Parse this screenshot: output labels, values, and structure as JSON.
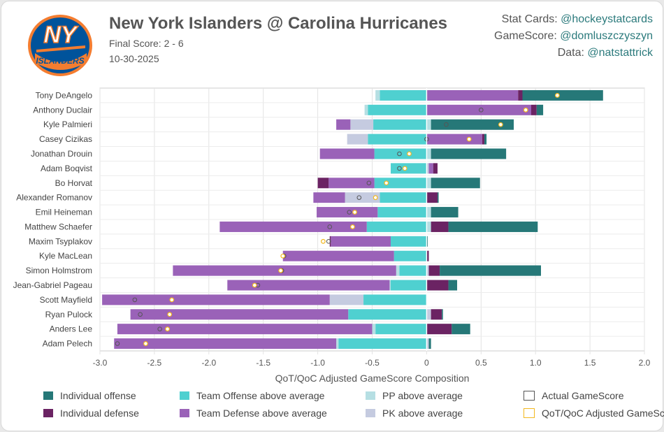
{
  "header": {
    "title": "New York Islanders @ Carolina Hurricanes",
    "final_score": "Final Score: 2 - 6",
    "date": "10-30-2025",
    "logo_text": "NY",
    "logo_word": "ISLANDERS"
  },
  "credits": [
    {
      "label": "Stat Cards: ",
      "handle": "@hockeystatcards"
    },
    {
      "label": "GameScore: ",
      "handle": "@domluszczyszyn"
    },
    {
      "label": "Data: ",
      "handle": "@natstattrick"
    }
  ],
  "colors": {
    "ind_off": "#267878",
    "ind_def": "#6b2363",
    "team_off": "#4fd0d0",
    "team_def": "#9a62b8",
    "pp": "#b6dfe3",
    "pk": "#c5cbe0",
    "actual_marker": "#555555",
    "adjusted_marker": "#f2b81f"
  },
  "legend": [
    {
      "key": "ind_off",
      "label": "Individual offense"
    },
    {
      "key": "team_off",
      "label": "Team Offense above average"
    },
    {
      "key": "pp",
      "label": "PP above average"
    },
    {
      "key": "actual",
      "label": "Actual GameScore"
    },
    {
      "key": "ind_def",
      "label": "Individual defense"
    },
    {
      "key": "team_def",
      "label": "Team Defense above average"
    },
    {
      "key": "pk",
      "label": "PK above average"
    },
    {
      "key": "adjusted",
      "label": "QoT/QoC Adjusted GameScore"
    }
  ],
  "chart_data": {
    "type": "bar",
    "orientation": "horizontal-stacked-diverging",
    "xlabel": "QoT/QoC Adjusted GameScore Composition",
    "xlim": [
      -3.0,
      2.0
    ],
    "xticks": [
      -3.0,
      -2.5,
      -2.0,
      -1.5,
      -1.0,
      -0.5,
      0,
      0.5,
      1.0,
      1.5,
      2.0
    ],
    "xtick_labels": [
      "-3.0",
      "-2.5",
      "-2.0",
      "-1.5",
      "-1.0",
      "-0.5",
      "0",
      "0.5",
      "1.0",
      "1.5",
      "2.0"
    ],
    "grid": true,
    "legend_position": "bottom",
    "players": [
      {
        "name": "Tony DeAngelo",
        "team_off": -0.43,
        "pp": -0.04,
        "team_def": 0.84,
        "ind_def": 0.04,
        "ind_off": 0.74,
        "pk": 0,
        "actual": 1.2,
        "adjusted": 1.2
      },
      {
        "name": "Anthony Duclair",
        "team_off": -0.54,
        "pp": -0.03,
        "team_def": 0.96,
        "ind_def": 0.05,
        "ind_off": 0.06,
        "pk": 0,
        "actual": 0.5,
        "adjusted": 0.91
      },
      {
        "name": "Kyle Palmieri",
        "team_off": -0.49,
        "pk": -0.21,
        "team_def": -0.13,
        "ind_off": 0.76,
        "pp": 0.04,
        "actual": 0.18,
        "adjusted": 0.68
      },
      {
        "name": "Casey Cizikas",
        "team_off": -0.54,
        "pk": -0.19,
        "team_def": 0.51,
        "ind_def": 0.02,
        "ind_off": 0.02,
        "pp": 0,
        "actual": 0.0,
        "adjusted": 0.39
      },
      {
        "name": "Jonathan Drouin",
        "team_off": -0.48,
        "team_def": -0.5,
        "ind_off": 0.69,
        "pp": 0.04,
        "pk": 0,
        "actual": -0.25,
        "adjusted": -0.16
      },
      {
        "name": "Adam Boqvist",
        "team_off": -0.33,
        "team_def": 0.04,
        "ind_def": 0.04,
        "pk": 0.02,
        "pp": 0,
        "actual": -0.25,
        "adjusted": -0.2
      },
      {
        "name": "Bo Horvat",
        "team_off": -0.48,
        "ind_def": -0.1,
        "team_def": -0.42,
        "ind_off": 0.45,
        "pp": 0.04,
        "actual": -0.53,
        "adjusted": -0.37
      },
      {
        "name": "Alexander Romanov",
        "team_off": -0.43,
        "pk": -0.32,
        "team_def": -0.29,
        "ind_def": 0.1,
        "ind_off": 0.01,
        "pp": 0,
        "actual": -0.62,
        "adjusted": -0.47
      },
      {
        "name": "Emil Heineman",
        "team_off": -0.45,
        "team_def": -0.56,
        "ind_off": 0.25,
        "pp": 0.04,
        "pk": 0,
        "actual": -0.71,
        "adjusted": -0.66
      },
      {
        "name": "Matthew Schaefer",
        "team_off": -0.55,
        "team_def": -1.35,
        "ind_def": 0.16,
        "ind_off": 0.82,
        "pp": 0.04,
        "actual": -0.89,
        "adjusted": -0.68
      },
      {
        "name": "Maxim Tsyplakov",
        "team_off": -0.33,
        "ind_def": -0.01,
        "team_def": -0.55,
        "ind_off": 0.01,
        "pp": 0,
        "actual": -0.9,
        "adjusted": -0.95
      },
      {
        "name": "Kyle MacLean",
        "team_off": -0.3,
        "team_def": -1.02,
        "ind_def": 0.02,
        "ind_off": 0,
        "pp": 0,
        "actual": -1.31,
        "adjusted": -1.32
      },
      {
        "name": "Simon Holmstrom",
        "team_off": -0.25,
        "pp": -0.03,
        "team_def": -2.05,
        "ind_def": 0.1,
        "ind_off": 0.93,
        "pk": 0.02,
        "actual": -1.33,
        "adjusted": -1.34
      },
      {
        "name": "Jean-Gabriel Pageau",
        "team_off": -0.33,
        "pp": -0.01,
        "team_def": -1.49,
        "ind_def": 0.2,
        "ind_off": 0.08,
        "pk": 0,
        "actual": -1.55,
        "adjusted": -1.58
      },
      {
        "name": "Scott Mayfield",
        "team_off": -0.58,
        "pk": -0.31,
        "team_def": -2.09,
        "ind_off": 0,
        "pp": 0,
        "actual": -2.68,
        "adjusted": -2.34
      },
      {
        "name": "Ryan Pulock",
        "team_off": -0.72,
        "team_def": -2.0,
        "ind_def": 0.1,
        "pk": 0.04,
        "ind_off": 0.01,
        "actual": -2.63,
        "adjusted": -2.36
      },
      {
        "name": "Anders Lee",
        "team_off": -0.47,
        "pp": -0.03,
        "team_def": -2.34,
        "ind_def": 0.23,
        "ind_off": 0.17,
        "pk": 0,
        "actual": -2.45,
        "adjusted": -2.38
      },
      {
        "name": "Adam Pelech",
        "team_off": -0.81,
        "pp": -0.02,
        "team_def": -2.04,
        "ind_def": 0.0,
        "ind_off": 0.02,
        "pk": 0.02,
        "actual": -2.84,
        "adjusted": -2.58
      }
    ]
  }
}
